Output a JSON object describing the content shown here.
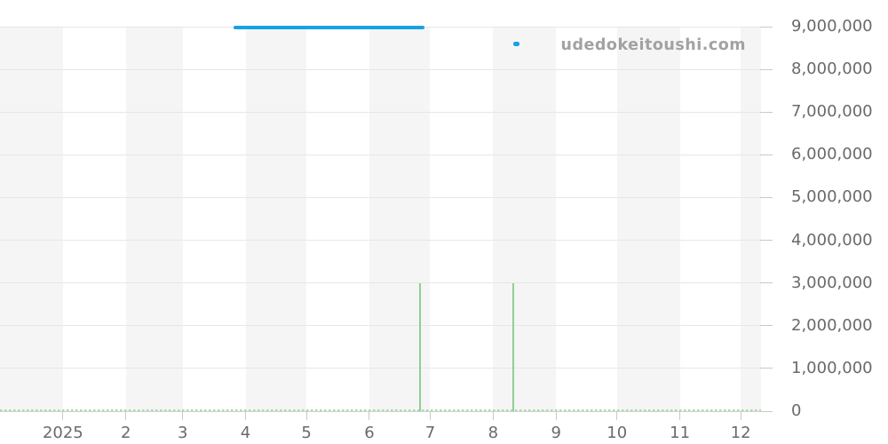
{
  "watermark": "udedokeitoushi.com",
  "chart_data": {
    "type": "line",
    "title": "",
    "watermark": "udedokeitoushi.com",
    "legend": "none",
    "grid": "on",
    "plot_background": {
      "band_fill": "#f5f5f5",
      "band_alternation": "monthly"
    },
    "x_axis": {
      "kind": "time",
      "start_date": "2024-12-01",
      "end_date": "2025-12-11",
      "tick_dates": [
        "2025-01-01",
        "2025-02-01",
        "2025-03-01",
        "2025-04-01",
        "2025-05-01",
        "2025-06-01",
        "2025-07-01",
        "2025-08-01",
        "2025-09-01",
        "2025-10-01",
        "2025-11-01",
        "2025-12-01"
      ],
      "tick_labels": [
        "2025",
        "2",
        "3",
        "4",
        "5",
        "6",
        "7",
        "8",
        "9",
        "10",
        "11",
        "12"
      ]
    },
    "y_axis": {
      "position": "right",
      "min": 0,
      "max": 9000000,
      "tick_interval": 1000000,
      "tick_labels": [
        "0",
        "1,000,000",
        "2,000,000",
        "3,000,000",
        "4,000,000",
        "5,000,000",
        "6,000,000",
        "7,000,000",
        "8,000,000",
        "9,000,000"
      ]
    },
    "series": [
      {
        "name": "blue-price-line",
        "color": "#18a1e4",
        "style": "solid-thick",
        "segments": [
          {
            "start": "2025-03-26",
            "end": "2025-06-28",
            "value": 8980000
          },
          {
            "start": "2025-08-11",
            "end": "2025-08-14",
            "value": 8590000
          }
        ]
      },
      {
        "name": "green-event-line",
        "color": "#90cf92",
        "baseline_color": "#a9dcaa",
        "style": "dashed-baseline-with-spikes",
        "baseline_value": 0,
        "spikes": [
          {
            "date": "2025-06-26",
            "value": 3000000
          },
          {
            "date": "2025-08-11",
            "value": 3000000
          }
        ]
      }
    ]
  }
}
